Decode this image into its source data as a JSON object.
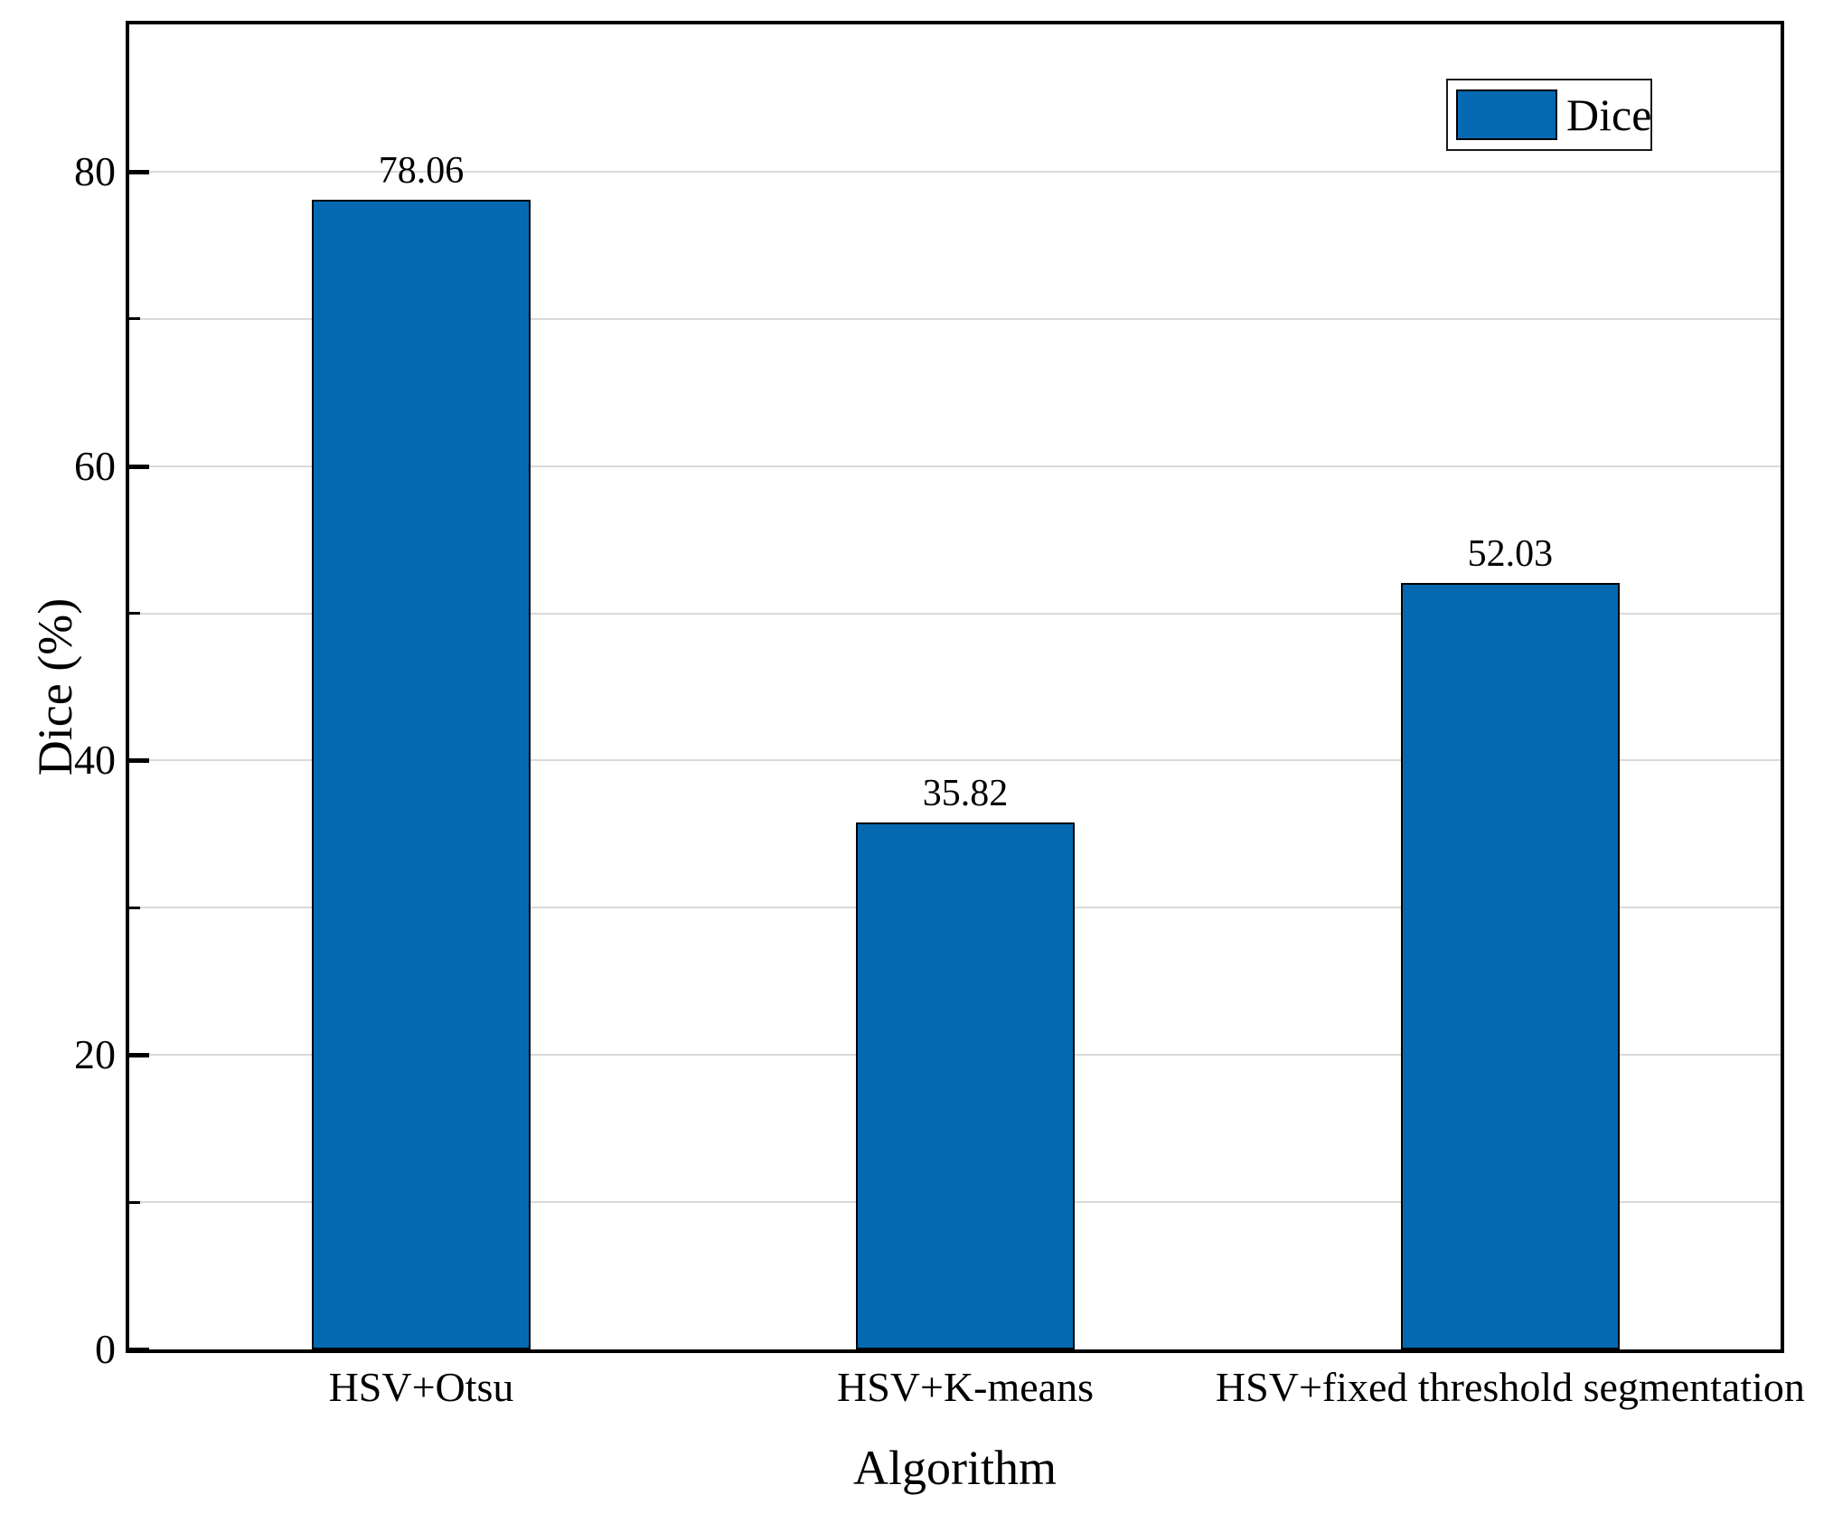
{
  "figure": {
    "background": "#ffffff"
  },
  "chart_data": {
    "type": "bar",
    "title": "",
    "categories": [
      "HSV+Otsu",
      "HSV+K-means",
      "HSV+fixed threshold segmentation"
    ],
    "series": [
      {
        "name": "Dice",
        "values": [
          78.06,
          35.82,
          52.03
        ]
      }
    ],
    "value_labels": [
      "78.06",
      "35.82",
      "52.03"
    ],
    "xlabel": "Algorithm",
    "ylabel": "Dice (%)",
    "ylim": [
      0,
      90
    ],
    "yticks_major": [
      0,
      20,
      40,
      60,
      80
    ],
    "yticks_minor": [
      10,
      30,
      50,
      70
    ],
    "grid": "horizontal gridlines every 10 units, on",
    "legend": {
      "label": "Dice",
      "position": "top-right"
    }
  },
  "colors": {
    "bar_fill": "#0569b1",
    "bar_edge": "#000000",
    "grid_line": "#d9d9d9",
    "axis_line": "#000000",
    "text": "#000000",
    "legend_border": "#1a1a1a"
  }
}
